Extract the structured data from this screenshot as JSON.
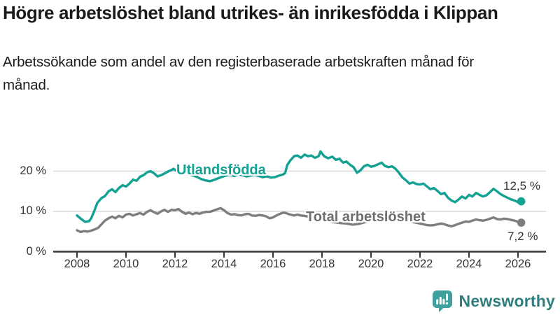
{
  "header": {
    "title": "Högre arbetslöshet bland utrikes- än inrikesfödda i Klippan",
    "subtitle": "Arbetssökande som andel av den registerbaserade arbetskraften månad för månad."
  },
  "chart_data": {
    "type": "line",
    "title": "Högre arbetslöshet bland utrikes- än inrikesfödda i Klippan",
    "xlabel": "",
    "ylabel": "",
    "unit": "%",
    "grid": "horizontal",
    "legend_position": "inline-labels",
    "colors": {
      "grid": "#d9d9d9",
      "axis": "#3a3a3a",
      "tick_text": "#333333"
    },
    "x_axis": {
      "ticks": [
        2008,
        2010,
        2012,
        2014,
        2016,
        2018,
        2020,
        2022,
        2024,
        2026
      ],
      "range_years": [
        2007.0,
        2027.2
      ]
    },
    "y_axis": {
      "ticks": [
        {
          "value": 20,
          "label": "20 %"
        },
        {
          "value": 10,
          "label": "10 %"
        },
        {
          "value": 0,
          "label": "0 %"
        }
      ],
      "range": [
        0,
        27
      ],
      "gridlines": [
        10,
        20
      ]
    },
    "series": [
      {
        "name": "Utlandsfödda",
        "color": "#12a192",
        "label_color": "#12a192",
        "end_label": "12,5 %",
        "end_value": 12.5,
        "points": [
          [
            2008.0,
            9.0
          ],
          [
            2008.17,
            8.1
          ],
          [
            2008.33,
            7.4
          ],
          [
            2008.5,
            7.6
          ],
          [
            2008.58,
            8.3
          ],
          [
            2008.71,
            10.2
          ],
          [
            2008.83,
            12.1
          ],
          [
            2009.0,
            13.3
          ],
          [
            2009.14,
            13.8
          ],
          [
            2009.29,
            15.0
          ],
          [
            2009.43,
            15.5
          ],
          [
            2009.57,
            14.8
          ],
          [
            2009.71,
            15.8
          ],
          [
            2009.86,
            16.5
          ],
          [
            2010.0,
            16.2
          ],
          [
            2010.14,
            16.9
          ],
          [
            2010.29,
            17.9
          ],
          [
            2010.43,
            17.6
          ],
          [
            2010.57,
            18.6
          ],
          [
            2010.71,
            19.0
          ],
          [
            2010.86,
            19.7
          ],
          [
            2011.0,
            20.0
          ],
          [
            2011.14,
            19.5
          ],
          [
            2011.29,
            18.7
          ],
          [
            2011.43,
            19.0
          ],
          [
            2011.57,
            19.4
          ],
          [
            2011.71,
            19.9
          ],
          [
            2011.86,
            20.3
          ],
          [
            2011.94,
            20.6
          ],
          [
            2012.09,
            19.9
          ],
          [
            2012.25,
            19.4
          ],
          [
            2012.42,
            19.7
          ],
          [
            2012.58,
            19.2
          ],
          [
            2012.75,
            18.9
          ],
          [
            2012.92,
            18.5
          ],
          [
            2013.08,
            18.0
          ],
          [
            2013.25,
            17.7
          ],
          [
            2013.42,
            17.5
          ],
          [
            2013.58,
            17.8
          ],
          [
            2013.75,
            18.2
          ],
          [
            2013.92,
            18.6
          ],
          [
            2014.08,
            18.9
          ],
          [
            2014.25,
            19.1
          ],
          [
            2014.42,
            18.8
          ],
          [
            2014.58,
            19.2
          ],
          [
            2014.75,
            19.0
          ],
          [
            2014.92,
            18.7
          ],
          [
            2015.08,
            18.9
          ],
          [
            2015.25,
            19.1
          ],
          [
            2015.42,
            18.8
          ],
          [
            2015.58,
            18.5
          ],
          [
            2015.75,
            18.7
          ],
          [
            2015.92,
            18.4
          ],
          [
            2016.08,
            18.5
          ],
          [
            2016.25,
            18.9
          ],
          [
            2016.42,
            19.2
          ],
          [
            2016.5,
            19.6
          ],
          [
            2016.58,
            21.5
          ],
          [
            2016.71,
            22.7
          ],
          [
            2016.86,
            23.7
          ],
          [
            2017.0,
            23.9
          ],
          [
            2017.14,
            23.3
          ],
          [
            2017.29,
            24.1
          ],
          [
            2017.43,
            23.7
          ],
          [
            2017.57,
            23.9
          ],
          [
            2017.71,
            23.3
          ],
          [
            2017.86,
            23.7
          ],
          [
            2017.94,
            24.9
          ],
          [
            2018.09,
            23.7
          ],
          [
            2018.25,
            23.2
          ],
          [
            2018.42,
            23.6
          ],
          [
            2018.57,
            22.8
          ],
          [
            2018.71,
            23.1
          ],
          [
            2018.86,
            22.1
          ],
          [
            2019.0,
            22.4
          ],
          [
            2019.14,
            21.6
          ],
          [
            2019.29,
            21.0
          ],
          [
            2019.43,
            19.6
          ],
          [
            2019.57,
            20.2
          ],
          [
            2019.71,
            21.2
          ],
          [
            2019.86,
            21.6
          ],
          [
            2020.0,
            21.1
          ],
          [
            2020.14,
            21.3
          ],
          [
            2020.29,
            21.7
          ],
          [
            2020.43,
            22.1
          ],
          [
            2020.57,
            21.3
          ],
          [
            2020.71,
            21.0
          ],
          [
            2020.86,
            21.2
          ],
          [
            2021.0,
            20.6
          ],
          [
            2021.14,
            19.6
          ],
          [
            2021.29,
            18.4
          ],
          [
            2021.43,
            17.7
          ],
          [
            2021.57,
            16.9
          ],
          [
            2021.71,
            17.2
          ],
          [
            2021.86,
            16.8
          ],
          [
            2022.0,
            16.7
          ],
          [
            2022.14,
            16.9
          ],
          [
            2022.29,
            16.2
          ],
          [
            2022.43,
            15.5
          ],
          [
            2022.57,
            15.8
          ],
          [
            2022.71,
            15.1
          ],
          [
            2022.86,
            14.3
          ],
          [
            2023.0,
            14.6
          ],
          [
            2023.14,
            13.4
          ],
          [
            2023.29,
            12.7
          ],
          [
            2023.43,
            12.3
          ],
          [
            2023.57,
            12.9
          ],
          [
            2023.71,
            13.7
          ],
          [
            2023.86,
            13.2
          ],
          [
            2024.0,
            14.1
          ],
          [
            2024.14,
            13.7
          ],
          [
            2024.29,
            14.6
          ],
          [
            2024.43,
            14.1
          ],
          [
            2024.57,
            13.7
          ],
          [
            2024.71,
            14.0
          ],
          [
            2024.86,
            14.8
          ],
          [
            2025.0,
            15.6
          ],
          [
            2025.14,
            15.0
          ],
          [
            2025.29,
            14.3
          ],
          [
            2025.43,
            13.8
          ],
          [
            2025.57,
            13.4
          ],
          [
            2025.71,
            13.0
          ],
          [
            2025.86,
            12.7
          ],
          [
            2026.0,
            12.3
          ],
          [
            2026.13,
            12.5
          ]
        ]
      },
      {
        "name": "Total arbetslöshet",
        "color": "#7e7e7e",
        "label_color": "#6e6e6e",
        "end_label": "7,2 %",
        "end_value": 7.2,
        "points": [
          [
            2008.0,
            5.3
          ],
          [
            2008.14,
            4.9
          ],
          [
            2008.29,
            5.1
          ],
          [
            2008.43,
            5.0
          ],
          [
            2008.57,
            5.2
          ],
          [
            2008.71,
            5.5
          ],
          [
            2008.86,
            5.9
          ],
          [
            2009.0,
            6.8
          ],
          [
            2009.14,
            7.7
          ],
          [
            2009.29,
            8.3
          ],
          [
            2009.43,
            8.7
          ],
          [
            2009.57,
            8.3
          ],
          [
            2009.71,
            8.9
          ],
          [
            2009.86,
            8.5
          ],
          [
            2010.0,
            9.2
          ],
          [
            2010.14,
            9.4
          ],
          [
            2010.29,
            9.0
          ],
          [
            2010.43,
            9.3
          ],
          [
            2010.57,
            9.6
          ],
          [
            2010.71,
            9.2
          ],
          [
            2010.86,
            9.9
          ],
          [
            2011.0,
            10.3
          ],
          [
            2011.14,
            9.8
          ],
          [
            2011.29,
            9.4
          ],
          [
            2011.43,
            10.0
          ],
          [
            2011.57,
            10.4
          ],
          [
            2011.71,
            9.9
          ],
          [
            2011.86,
            10.4
          ],
          [
            2012.0,
            10.3
          ],
          [
            2012.14,
            10.6
          ],
          [
            2012.29,
            9.9
          ],
          [
            2012.43,
            9.4
          ],
          [
            2012.57,
            9.7
          ],
          [
            2012.71,
            9.3
          ],
          [
            2012.86,
            9.6
          ],
          [
            2013.0,
            9.4
          ],
          [
            2013.14,
            9.7
          ],
          [
            2013.29,
            9.9
          ],
          [
            2013.43,
            9.9
          ],
          [
            2013.57,
            10.2
          ],
          [
            2013.71,
            10.5
          ],
          [
            2013.86,
            10.8
          ],
          [
            2014.0,
            10.3
          ],
          [
            2014.14,
            9.6
          ],
          [
            2014.29,
            9.2
          ],
          [
            2014.43,
            9.3
          ],
          [
            2014.57,
            9.1
          ],
          [
            2014.71,
            9.0
          ],
          [
            2014.86,
            9.3
          ],
          [
            2015.0,
            9.4
          ],
          [
            2015.14,
            9.0
          ],
          [
            2015.29,
            8.9
          ],
          [
            2015.43,
            9.1
          ],
          [
            2015.57,
            9.0
          ],
          [
            2015.71,
            8.8
          ],
          [
            2015.86,
            8.3
          ],
          [
            2016.0,
            8.5
          ],
          [
            2016.14,
            9.0
          ],
          [
            2016.29,
            9.4
          ],
          [
            2016.43,
            9.7
          ],
          [
            2016.57,
            9.5
          ],
          [
            2016.71,
            9.2
          ],
          [
            2016.86,
            9.0
          ],
          [
            2017.0,
            9.2
          ],
          [
            2017.14,
            9.0
          ],
          [
            2017.29,
            8.9
          ],
          [
            2017.43,
            8.7
          ],
          [
            2017.57,
            8.5
          ],
          [
            2017.71,
            8.3
          ],
          [
            2017.86,
            8.1
          ],
          [
            2018.0,
            8.0
          ],
          [
            2018.25,
            7.6
          ],
          [
            2018.5,
            7.3
          ],
          [
            2018.75,
            7.1
          ],
          [
            2019.0,
            7.0
          ],
          [
            2019.25,
            6.7
          ],
          [
            2019.5,
            6.9
          ],
          [
            2019.75,
            7.3
          ],
          [
            2020.0,
            7.8
          ],
          [
            2020.25,
            8.7
          ],
          [
            2020.5,
            9.3
          ],
          [
            2020.75,
            9.1
          ],
          [
            2021.0,
            8.8
          ],
          [
            2021.25,
            8.3
          ],
          [
            2021.5,
            7.8
          ],
          [
            2021.75,
            7.3
          ],
          [
            2022.0,
            7.0
          ],
          [
            2022.14,
            6.8
          ],
          [
            2022.29,
            6.6
          ],
          [
            2022.43,
            6.5
          ],
          [
            2022.57,
            6.6
          ],
          [
            2022.71,
            6.8
          ],
          [
            2022.86,
            7.0
          ],
          [
            2023.0,
            6.8
          ],
          [
            2023.14,
            6.5
          ],
          [
            2023.29,
            6.3
          ],
          [
            2023.43,
            6.6
          ],
          [
            2023.57,
            6.9
          ],
          [
            2023.71,
            7.2
          ],
          [
            2023.86,
            7.5
          ],
          [
            2024.0,
            7.4
          ],
          [
            2024.14,
            7.7
          ],
          [
            2024.29,
            8.0
          ],
          [
            2024.43,
            7.8
          ],
          [
            2024.57,
            7.7
          ],
          [
            2024.71,
            7.9
          ],
          [
            2024.86,
            8.2
          ],
          [
            2025.0,
            8.5
          ],
          [
            2025.14,
            8.1
          ],
          [
            2025.29,
            8.0
          ],
          [
            2025.43,
            8.2
          ],
          [
            2025.57,
            8.1
          ],
          [
            2025.71,
            7.9
          ],
          [
            2025.86,
            7.7
          ],
          [
            2026.0,
            7.4
          ],
          [
            2026.13,
            7.2
          ]
        ]
      }
    ]
  },
  "branding": {
    "logo_text": "Newsworthy",
    "logo_icon": "bar-chart-speech-bubble-icon",
    "icon_color": "#3fa09d",
    "text_color": "#2f7e7e"
  }
}
